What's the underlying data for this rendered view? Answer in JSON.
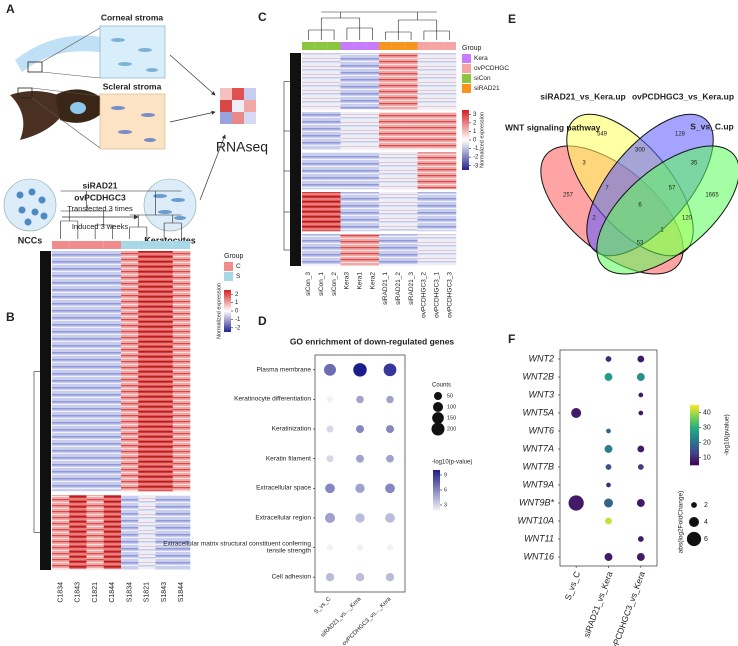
{
  "panel_labels": [
    "A",
    "B",
    "C",
    "D",
    "E",
    "F"
  ],
  "panel_a": {
    "corneal": "Corneal stroma",
    "scleral": "Scleral stroma",
    "treatment_1": "siRAD21",
    "treatment_2": "ovPCDHGC3",
    "step_1": "Transfected 3 times",
    "step_2": "Induced 3 weeks",
    "source": "NCCs",
    "target": "Keratocytes",
    "assay": "RNAseq"
  },
  "panel_b": {
    "columns": [
      "C1834",
      "C1843",
      "C1821",
      "C1844",
      "S1834",
      "S1821",
      "S1843",
      "S1844"
    ],
    "column_groups": [
      0,
      0,
      0,
      0,
      1,
      1,
      1,
      1
    ],
    "group_title": "Group",
    "groups": [
      {
        "name": "C",
        "color": "#f28b8b"
      },
      {
        "name": "S",
        "color": "#a8d8e8"
      }
    ],
    "colorbar_title": "Normalized expression",
    "colorbar_ticks": [
      2,
      1,
      0,
      -1,
      -2
    ],
    "colorbar_lim": [
      -2.5,
      2.5
    ]
  },
  "panel_c": {
    "columns": [
      "siCon_3",
      "siCon_1",
      "siCon_2",
      "Kera3",
      "Kera1",
      "Kera2",
      "siRAD21_1",
      "siRAD21_2",
      "siRAD21_3",
      "ovPCDHGC3_2",
      "ovPCDHGC3_1",
      "ovPCDHGC3_3"
    ],
    "column_groups": [
      2,
      2,
      2,
      0,
      0,
      0,
      3,
      3,
      3,
      1,
      1,
      1
    ],
    "group_title": "Group",
    "groups": [
      {
        "name": "Kera",
        "color": "#c77cff"
      },
      {
        "name": "ovPCDHGC",
        "color": "#f6a3a3"
      },
      {
        "name": "siCon",
        "color": "#8cc63f"
      },
      {
        "name": "siRAD21",
        "color": "#f7941d"
      }
    ],
    "colorbar_title": "Normalized expression",
    "colorbar_ticks": [
      3,
      2,
      1,
      0,
      -1,
      -2,
      -3
    ],
    "colorbar_lim": [
      -3.5,
      3.5
    ]
  },
  "chart_data": [
    {
      "type": "dot",
      "title": "GO enrichment of down-regulated genes",
      "categories": [
        "Plasma membrane",
        "Keratinocyte differentiation",
        "Keratinization",
        "Keratin filament",
        "Extracellular space",
        "Extracellular region",
        "Extracellular matrix structural constituent conferring tensile strength",
        "Cell adhesion"
      ],
      "columns": [
        {
          "label": "S_vs_C",
          "counts": [
            160,
            20,
            30,
            30,
            90,
            100,
            20,
            60
          ],
          "neglog10p": [
            7,
            2,
            3,
            3,
            6,
            5,
            2,
            4
          ]
        },
        {
          "label": "siRAD21_vs..._Kera",
          "counts": [
            220,
            40,
            50,
            50,
            80,
            80,
            20,
            60
          ],
          "neglog10p": [
            10,
            5,
            6,
            5,
            5,
            4,
            2,
            4
          ]
        },
        {
          "label": "ovPCDHGC3_vs..._Kera",
          "counts": [
            190,
            40,
            50,
            45,
            90,
            90,
            20,
            60
          ],
          "neglog10p": [
            9,
            5,
            6,
            5,
            6,
            4,
            2,
            4
          ]
        }
      ],
      "size_legend": {
        "title": "Counts",
        "ticks": [
          50,
          100,
          150,
          200
        ],
        "max": 200
      },
      "color_legend": {
        "title": "-log10(p-value)",
        "ticks": [
          9,
          6,
          3
        ],
        "lim": [
          2,
          10
        ],
        "colors": [
          "#f0f0f6",
          "#1c1c8c"
        ]
      }
    },
    {
      "type": "venn",
      "sets": [
        {
          "name": "WNT signaling pathway",
          "color": "#ff5a5a"
        },
        {
          "name": "siRAD21_vs_Kera.up",
          "color": "#ffff5a"
        },
        {
          "name": "ovPCDHGC3_vs_Kera.up",
          "color": "#5a5aff"
        },
        {
          "name": "S_vs_C.up",
          "color": "#5aff5a"
        }
      ],
      "regions": [
        {
          "sets": [
            0
          ],
          "value": 257
        },
        {
          "sets": [
            1
          ],
          "value": 549
        },
        {
          "sets": [
            2
          ],
          "value": 128
        },
        {
          "sets": [
            3
          ],
          "value": 1665
        },
        {
          "sets": [
            0,
            1
          ],
          "value": 3
        },
        {
          "sets": [
            1,
            2
          ],
          "value": 300
        },
        {
          "sets": [
            2,
            3
          ],
          "value": 35
        },
        {
          "sets": [
            0,
            3
          ],
          "value": 53
        },
        {
          "sets": [
            0,
            2
          ],
          "value": 2
        },
        {
          "sets": [
            1,
            3
          ],
          "value": 120
        },
        {
          "sets": [
            0,
            1,
            2
          ],
          "value": 7
        },
        {
          "sets": [
            1,
            2,
            3
          ],
          "value": 57
        },
        {
          "sets": [
            0,
            2,
            3
          ],
          "value": 1
        },
        {
          "sets": [
            0,
            1,
            2,
            3
          ],
          "value": 6
        }
      ]
    },
    {
      "type": "dot",
      "categories": [
        "WNT2",
        "WNT2B",
        "WNT3",
        "WNT5A",
        "WNT6",
        "WNT7A",
        "WNT7B",
        "WNT9A",
        "WNT9B*",
        "WNT10A",
        "WNT11",
        "WNT16"
      ],
      "highlight_index": 8,
      "highlight_color": "#e41a1c",
      "columns": [
        {
          "label": "S_vs_C",
          "neglog10p": [
            null,
            null,
            null,
            8,
            null,
            null,
            null,
            null,
            8,
            null,
            null,
            null
          ],
          "abs_log2fc": [
            null,
            null,
            null,
            4,
            null,
            null,
            null,
            null,
            6.5,
            null,
            null,
            null
          ]
        },
        {
          "label": "siRAD21_vs_Kera",
          "neglog10p": [
            10,
            27,
            null,
            null,
            18,
            22,
            15,
            10,
            18,
            42,
            null,
            8
          ],
          "abs_log2fc": [
            2,
            3,
            null,
            null,
            1.5,
            3,
            2,
            1.5,
            3.5,
            2.5,
            null,
            3
          ]
        },
        {
          "label": "ovPCDHGC3_vs_Kera",
          "neglog10p": [
            8,
            25,
            8,
            8,
            null,
            8,
            12,
            null,
            8,
            null,
            8,
            8
          ],
          "abs_log2fc": [
            2.5,
            3,
            1.5,
            1.5,
            null,
            2.5,
            2,
            null,
            3,
            null,
            2,
            3
          ]
        }
      ],
      "color_legend": {
        "title": "-log10(pvalue)",
        "ticks": [
          40,
          30,
          20,
          10
        ],
        "lim": [
          5,
          45
        ],
        "colormap": "viridis"
      },
      "size_legend": {
        "title": "abs(log2FoldChange)",
        "ticks": [
          2,
          4,
          6
        ]
      }
    }
  ]
}
